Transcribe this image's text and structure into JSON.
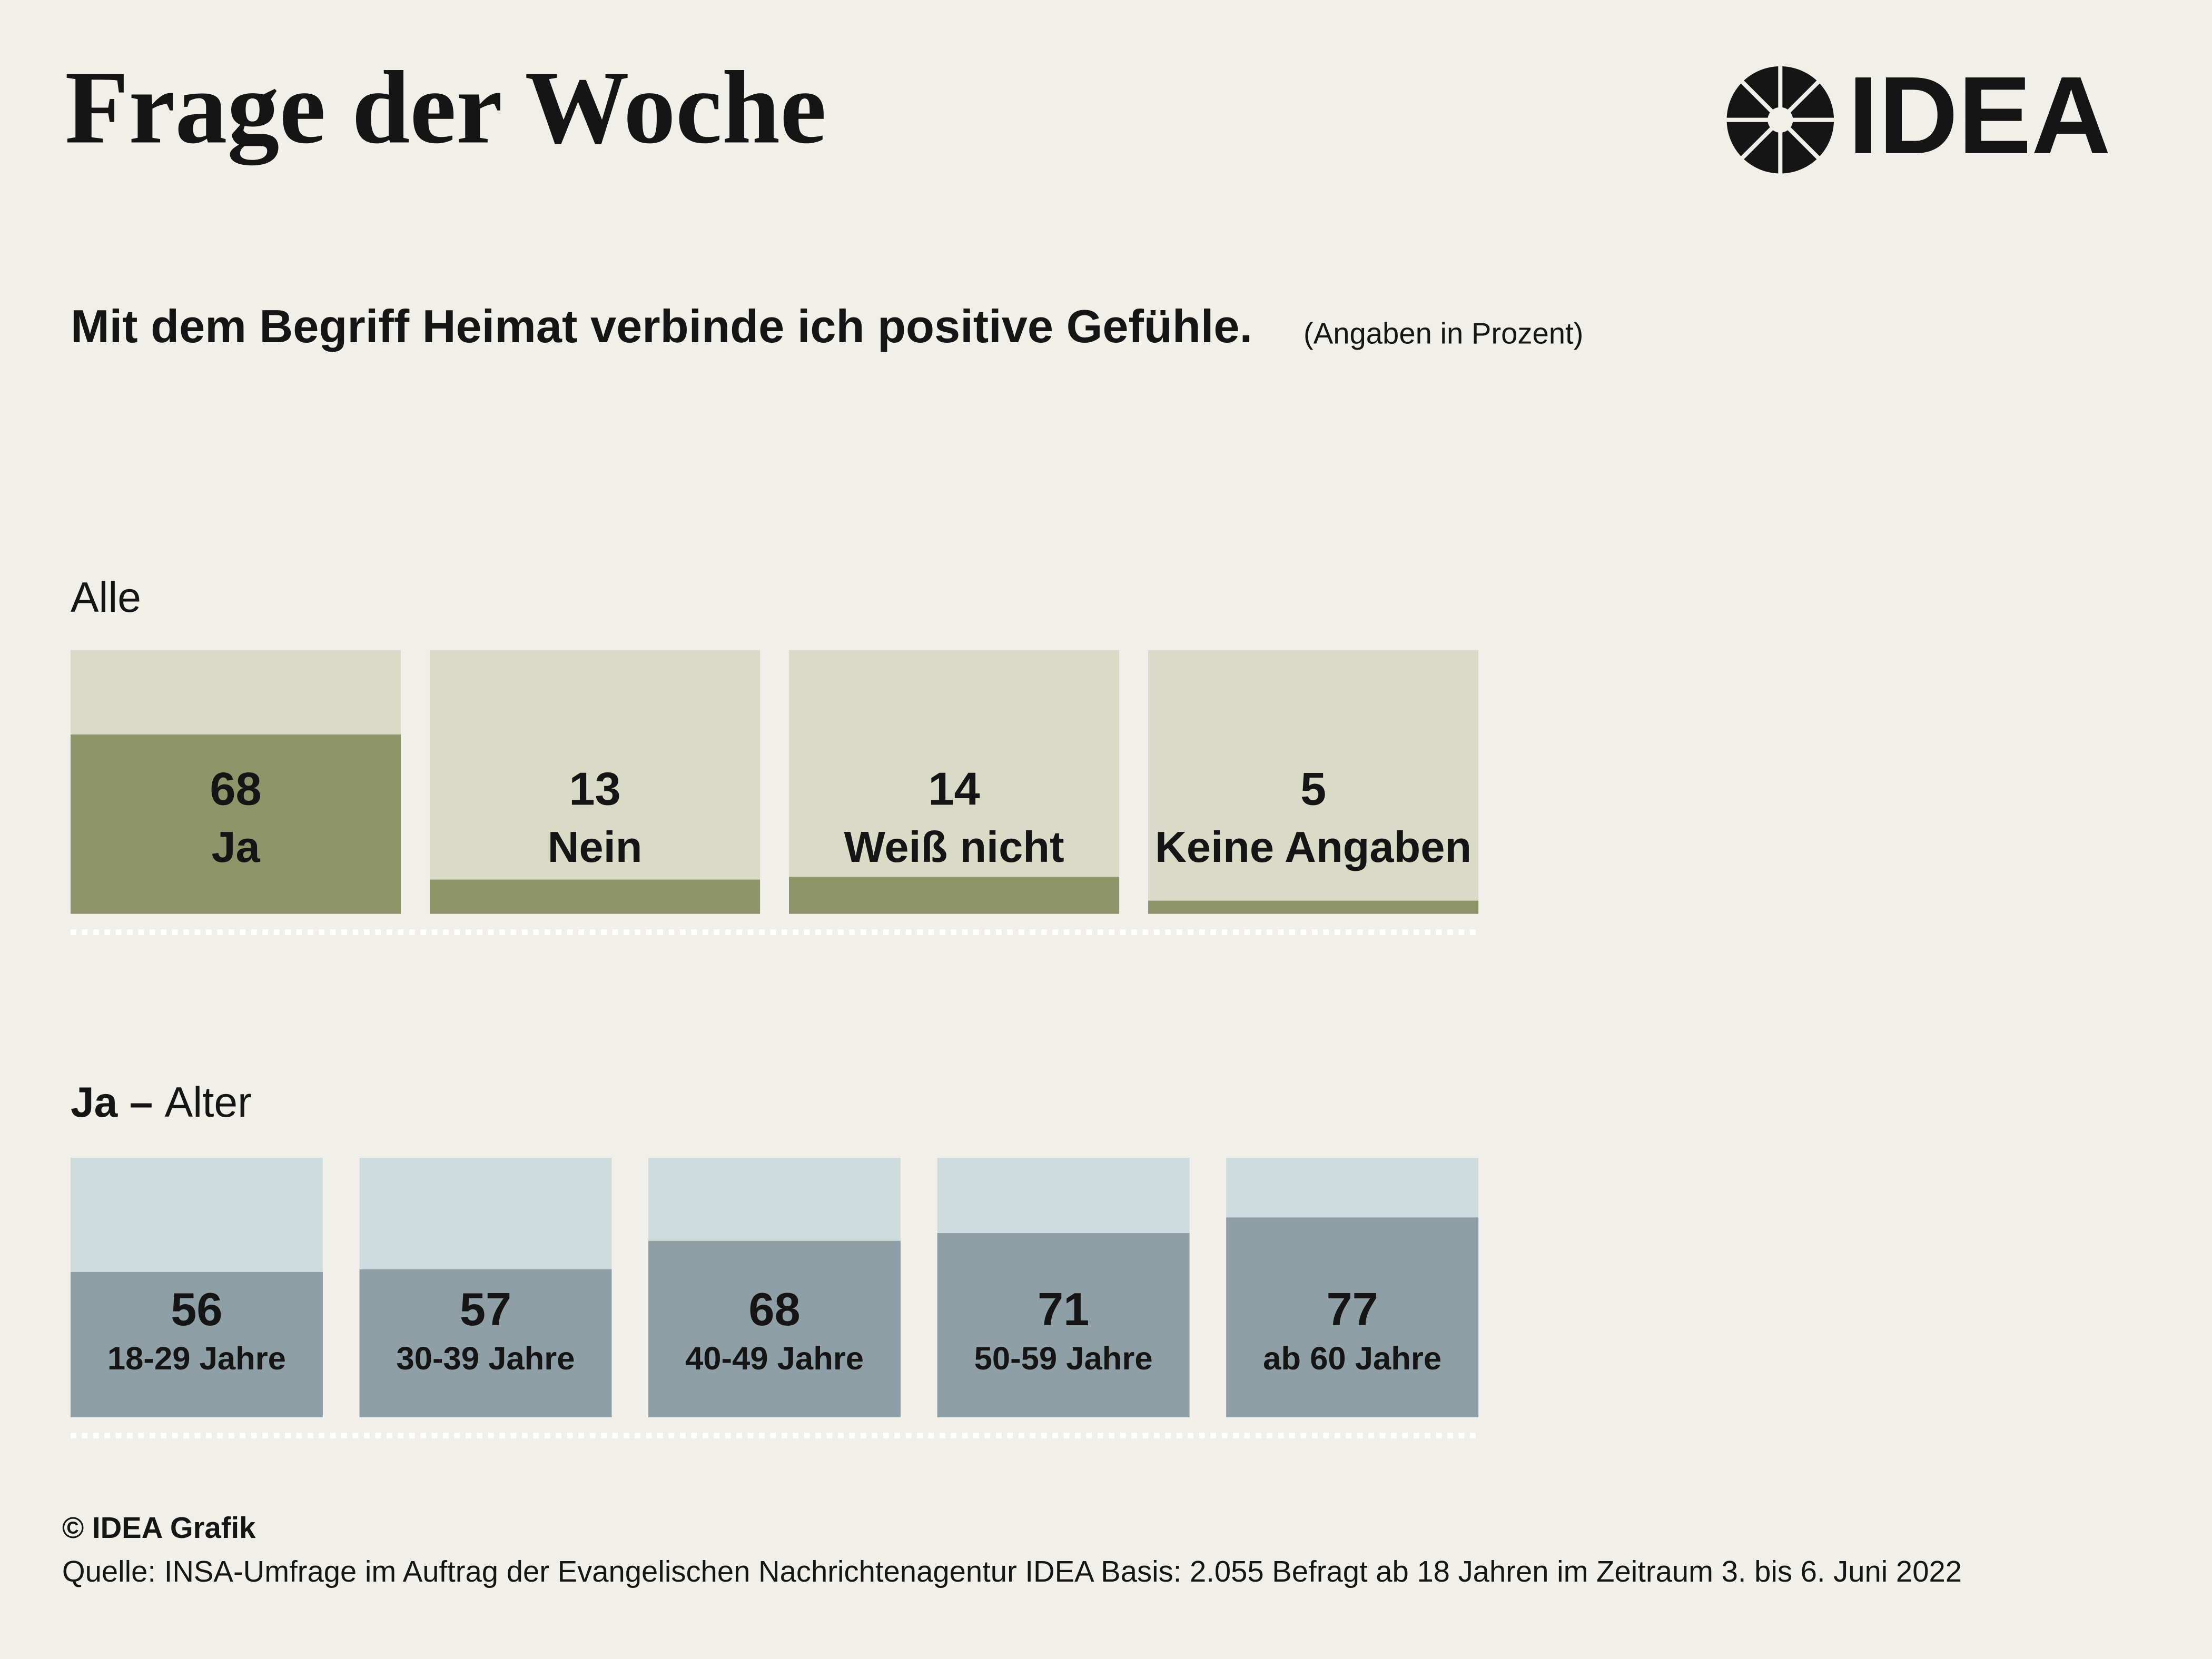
{
  "header": {
    "title": "Frage der Woche",
    "logo": "IDEA"
  },
  "question": "Mit dem Begriff Heimat verbinde ich positive Gefühle.",
  "unit_note": "(Angaben in Prozent)",
  "chart_data": [
    {
      "type": "bar",
      "title": "Alle",
      "categories": [
        "Ja",
        "Nein",
        "Weiß nicht",
        "Keine Angaben"
      ],
      "values": [
        68,
        13,
        14,
        5
      ],
      "color": "#8f956a",
      "background_color": "#d9dbc6",
      "ylim": [
        0,
        100
      ]
    },
    {
      "type": "bar",
      "title_prefix": "Ja –",
      "title": "Alter",
      "categories": [
        "18-29 Jahre",
        "30-39 Jahre",
        "40-49 Jahre",
        "50-59 Jahre",
        "ab 60 Jahre"
      ],
      "values": [
        56,
        57,
        68,
        71,
        77
      ],
      "color": "#8ea0a5",
      "background_color": "#cfdcde",
      "ylim": [
        0,
        100
      ]
    }
  ],
  "footer": {
    "credit": "© IDEA Grafik",
    "source": "Quelle: INSA-Umfrage im Auftrag der Evangelischen Nachrichtenagentur IDEA Basis: 2.055 Befragt ab 18 Jahren im Zeitraum 3. bis 6. Juni 2022"
  }
}
